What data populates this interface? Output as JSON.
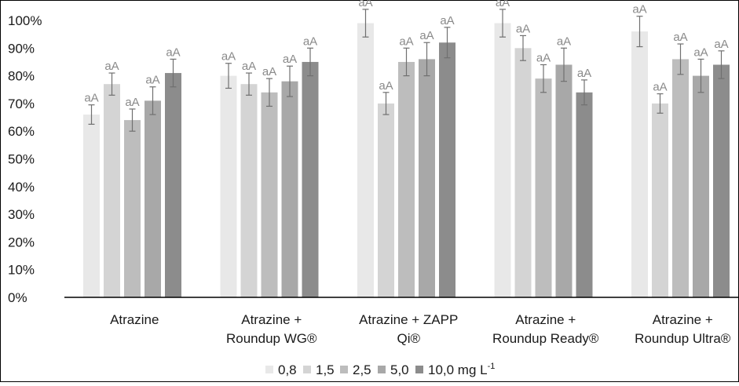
{
  "chart_data": {
    "type": "bar",
    "categories": [
      [
        "Atrazine"
      ],
      [
        "Atrazine +",
        "Roundup WG®"
      ],
      [
        "Atrazine + ZAPP",
        "Qi®"
      ],
      [
        "Atrazine +",
        "Roundup Ready®"
      ],
      [
        "Atrazine +",
        "Roundup Ultra®"
      ]
    ],
    "series": [
      {
        "name": "0,8",
        "color": "#e8e8e8",
        "values": [
          66,
          80,
          99,
          99,
          96
        ],
        "errors": [
          3.5,
          4.5,
          5,
          5,
          5.5
        ],
        "labels": [
          "aA",
          "aA",
          "aA",
          "aA",
          "aA"
        ]
      },
      {
        "name": "1,5",
        "color": "#d4d4d4",
        "values": [
          77,
          77,
          70,
          90,
          70
        ],
        "errors": [
          4,
          4,
          4,
          4.5,
          3.5
        ],
        "labels": [
          "aA",
          "aA",
          "aA",
          "aA",
          "aA"
        ]
      },
      {
        "name": "2,5",
        "color": "#bdbdbd",
        "values": [
          64,
          74,
          85,
          79,
          86
        ],
        "errors": [
          4,
          5,
          5,
          5,
          5.5
        ],
        "labels": [
          "aA",
          "aA",
          "aA",
          "aA",
          "aA"
        ]
      },
      {
        "name": "5,0",
        "color": "#a8a8a8",
        "values": [
          71,
          78,
          86,
          84,
          80
        ],
        "errors": [
          5,
          5.5,
          6,
          6,
          6
        ]
      },
      {
        "name": "10,0 mg L",
        "name_sup": "-1",
        "color": "#8c8c8c",
        "values": [
          81,
          85,
          92,
          74,
          84
        ],
        "errors": [
          5,
          5,
          5.5,
          4.5,
          5
        ]
      }
    ],
    "y_ticks": [
      "0%",
      "10%",
      "20%",
      "30%",
      "40%",
      "50%",
      "60%",
      "70%",
      "80%",
      "90%",
      "100%"
    ],
    "ylim": [
      0,
      100
    ],
    "grid": false,
    "legend_position": "bottom"
  }
}
